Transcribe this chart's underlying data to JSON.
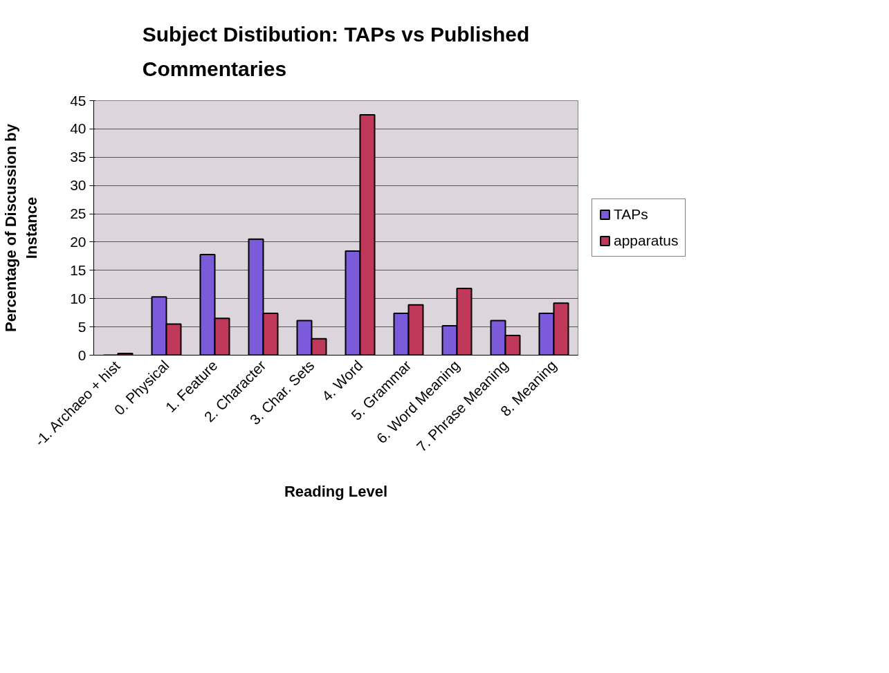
{
  "chart_data": {
    "type": "bar",
    "title": "Subject Distibution: TAPs vs Published Commentaries",
    "xlabel": "Reading Level",
    "ylabel": "Percentage of Discussion by Instance",
    "categories": [
      "-1. Archaeo + hist",
      "0. Physical",
      "1. Feature",
      "2. Character",
      "3. Char. Sets",
      "4. Word",
      "5. Grammar",
      "6. Word Meaning",
      "7. Phrase Meaning",
      "8. Meaning"
    ],
    "series": [
      {
        "name": "TAPs",
        "color": "#7b5bd9",
        "values": [
          null,
          10.3,
          17.8,
          20.5,
          6.1,
          18.4,
          7.4,
          5.2,
          6.1,
          7.4
        ]
      },
      {
        "name": "apparatus",
        "color": "#c0395a",
        "values": [
          0.3,
          5.5,
          6.5,
          7.4,
          2.9,
          42.5,
          8.9,
          11.8,
          3.5,
          9.2
        ]
      }
    ],
    "ylim": [
      0,
      45
    ],
    "yticks": [
      0,
      5,
      10,
      15,
      20,
      25,
      30,
      35,
      40,
      45
    ],
    "grid": "y",
    "legend": "right"
  }
}
